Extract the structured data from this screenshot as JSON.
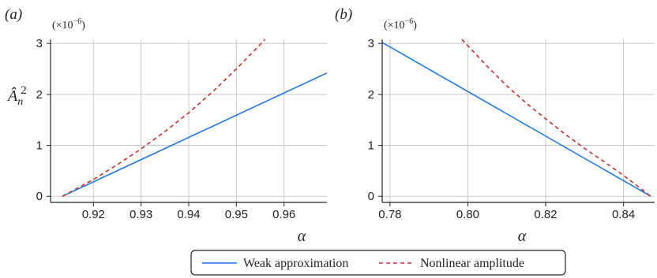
{
  "chart_data": [
    {
      "panel_label": "(a)",
      "type": "line",
      "ylabel": "Â",
      "ylabel_sub": "n",
      "ylabel_sup": "2",
      "xlabel": "α",
      "y_multiplier": "(×10",
      "y_multiplier_exp": "−6",
      "y_multiplier_close": ")",
      "xlim": [
        0.911,
        0.969
      ],
      "ylim": [
        -0.12,
        3.08
      ],
      "xticks": [
        0.92,
        0.93,
        0.94,
        0.95,
        0.96
      ],
      "xtick_labels": [
        "0.92",
        "0.93",
        "0.94",
        "0.95",
        "0.96"
      ],
      "yticks": [
        0,
        1,
        2,
        3
      ],
      "ytick_labels": [
        "0",
        "1",
        "2",
        "3"
      ],
      "grid": true,
      "series": [
        {
          "name": "Weak approximation",
          "color": "#1f77e0",
          "dash": "solid",
          "x": [
            0.9135,
            0.969
          ],
          "y": [
            0.0,
            2.42
          ]
        },
        {
          "name": "Nonlinear amplitude",
          "color": "#c9302c",
          "dash": "dashed",
          "x": [
            0.9135,
            0.92,
            0.925,
            0.93,
            0.935,
            0.94,
            0.945,
            0.95,
            0.955,
            0.956
          ],
          "y": [
            0.0,
            0.33,
            0.62,
            0.93,
            1.27,
            1.64,
            2.05,
            2.5,
            2.98,
            3.08
          ]
        }
      ]
    },
    {
      "panel_label": "(b)",
      "type": "line",
      "xlabel": "α",
      "y_multiplier": "(×10",
      "y_multiplier_exp": "−6",
      "y_multiplier_close": ")",
      "xlim": [
        0.778,
        0.848
      ],
      "ylim": [
        -0.12,
        3.08
      ],
      "xticks": [
        0.78,
        0.8,
        0.82,
        0.84
      ],
      "xtick_labels": [
        "0.78",
        "0.80",
        "0.82",
        "0.84"
      ],
      "yticks": [
        0,
        1,
        2,
        3
      ],
      "ytick_labels": [
        "0",
        "1",
        "2",
        "3"
      ],
      "grid": true,
      "series": [
        {
          "name": "Weak approximation",
          "color": "#1f77e0",
          "dash": "solid",
          "x": [
            0.778,
            0.847
          ],
          "y": [
            3.02,
            0.0
          ]
        },
        {
          "name": "Nonlinear amplitude",
          "color": "#c9302c",
          "dash": "dashed",
          "x": [
            0.7985,
            0.805,
            0.81,
            0.815,
            0.82,
            0.825,
            0.83,
            0.835,
            0.84,
            0.847
          ],
          "y": [
            3.08,
            2.55,
            2.17,
            1.83,
            1.52,
            1.22,
            0.94,
            0.68,
            0.41,
            0.0
          ]
        }
      ]
    }
  ],
  "legend": {
    "items": [
      {
        "label": "Weak approximation",
        "color": "#1f77e0",
        "dash": "solid"
      },
      {
        "label": "Nonlinear amplitude",
        "color": "#c9302c",
        "dash": "dashed"
      }
    ]
  }
}
